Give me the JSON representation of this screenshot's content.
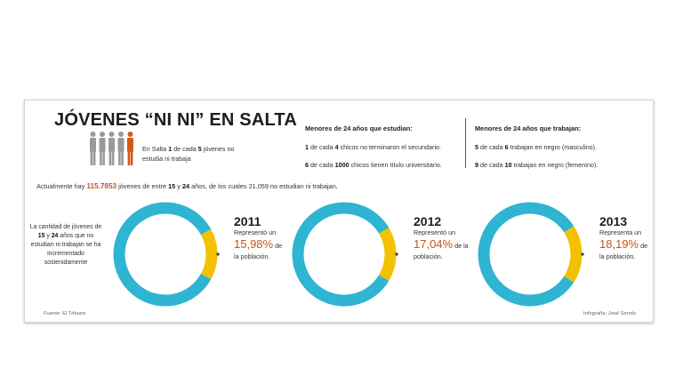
{
  "title": "JÓVENES “NI NI” EN SALTA",
  "people_fact": {
    "prefix": "En Salta ",
    "num1": "1",
    "mid": " de cada ",
    "num2": "5",
    "suffix": " jóvenes no estudia ni trabaja"
  },
  "studying": {
    "heading": "Menores de 24 años que estudian:",
    "stats": [
      {
        "num1": "1",
        "mid": " de cada ",
        "num2": "4",
        "text": " chicos no terminaron el secundario."
      },
      {
        "num1": "6",
        "mid": " de cada ",
        "num2": "1000",
        "text": " chicos tienen título universitario."
      }
    ]
  },
  "working": {
    "heading": "Menores de 24 años que trabajan:",
    "stats": [
      {
        "num1": "5",
        "mid": " de cada ",
        "num2": "6",
        "text": " trabajan en negro (masculino)."
      },
      {
        "num1": "9",
        "mid": " de cada ",
        "num2": "10",
        "text": " trabajan en negro (femenino)."
      }
    ]
  },
  "intro": {
    "prefix": "Actualmente hay ",
    "total": "115.7853",
    "mid1": " jóvenes de entre ",
    "age1": "15",
    "mid2": " y ",
    "age2": "24",
    "suffix": " años, de los cuales 21.059 no estudian ni trabajan,"
  },
  "side_note": {
    "line1": "La cantidad de jóvenes de",
    "age1": "15",
    "y": " y ",
    "age2": "24",
    "rest": " años que no estudian ni trabajan se ha incrementado sostenidamente"
  },
  "colors": {
    "ring": "#2fb4d2",
    "highlight": "#f2c200",
    "accent": "#c0561b",
    "figure_gray": "#9a9a9a",
    "figure_orange": "#d45a14"
  },
  "chart_data": {
    "type": "pie",
    "charts": [
      {
        "year": "2011",
        "verb": "Representó un",
        "value": 15.98,
        "label": "15,98%",
        "tail1": "de",
        "tail2": "la población."
      },
      {
        "year": "2012",
        "verb": "Representó un",
        "value": 17.04,
        "label": "17,04%",
        "tail1": "de la",
        "tail2": "población."
      },
      {
        "year": "2013",
        "verb": "Representa un",
        "value": 18.19,
        "label": "18,19%",
        "tail1": "de",
        "tail2": "la población."
      }
    ]
  },
  "footer": {
    "source": "Fuente: El Tribuno",
    "credit": "Infografía: José Serrdo"
  }
}
